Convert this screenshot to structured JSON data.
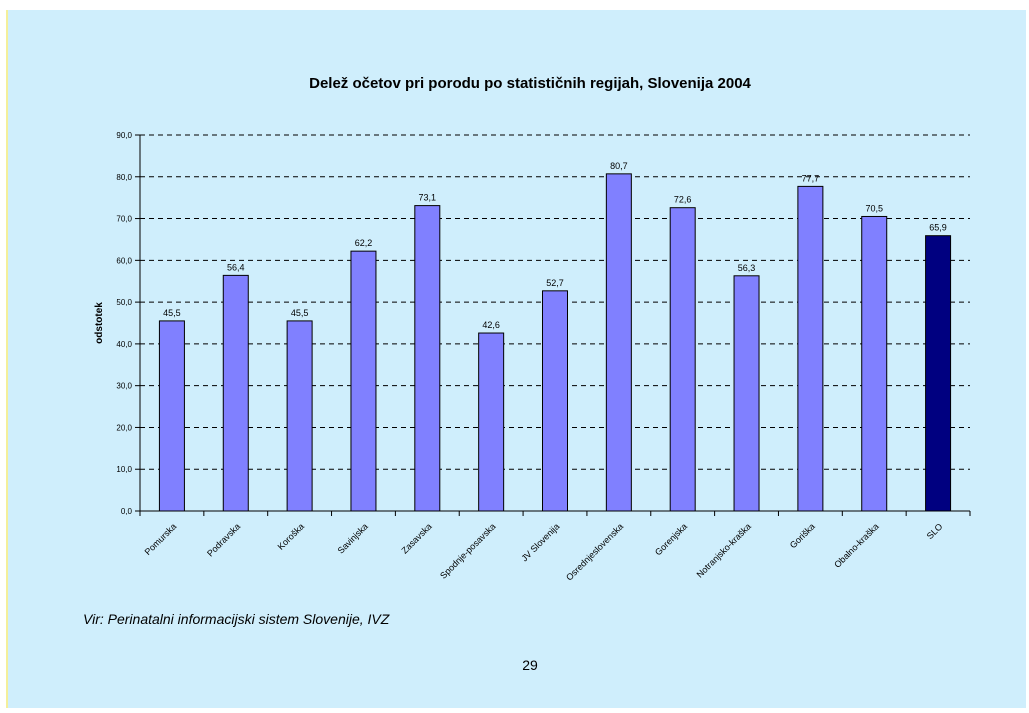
{
  "chart_data": {
    "type": "bar",
    "title": "Delež očetov pri porodu po statističnih regijah, Slovenija 2004",
    "ylabel": "odstotek",
    "xlabel": "",
    "ylim": [
      0,
      90
    ],
    "yticks": [
      "0,0",
      "10,0",
      "20,0",
      "30,0",
      "40,0",
      "50,0",
      "60,0",
      "70,0",
      "80,0",
      "90,0"
    ],
    "grid": true,
    "categories": [
      "Pomurska",
      "Podravska",
      "Koroška",
      "Savinjska",
      "Zasavska",
      "Spodnje-posavska",
      "JV Slovenija",
      "Osrednjeslovenska",
      "Gorenjska",
      "Notranjsko-kraška",
      "Goriška",
      "Obalno-kraška",
      "SLO"
    ],
    "values": [
      45.5,
      56.4,
      45.5,
      62.2,
      73.1,
      42.6,
      52.7,
      80.7,
      72.6,
      56.3,
      77.7,
      70.5,
      65.9
    ],
    "value_labels": [
      "45,5",
      "56,4",
      "45,5",
      "62,2",
      "73,1",
      "42,6",
      "52,7",
      "80,7",
      "72,6",
      "56,3",
      "77,7",
      "70,5",
      "65,9"
    ],
    "colors": {
      "bar": "#8080ff",
      "highlight_bar": "#000080",
      "highlight_category": "SLO"
    }
  },
  "source": "Vir: Perinatalni informacijski sistem Slovenije, IVZ",
  "page_number": "29"
}
